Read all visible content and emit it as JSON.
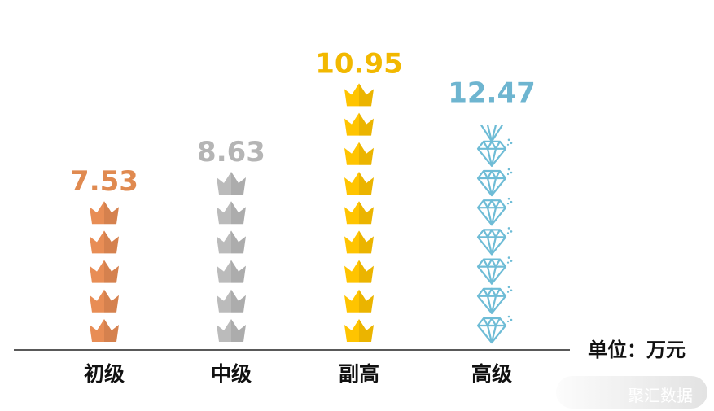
{
  "chart_data": {
    "type": "bar",
    "title": "",
    "xlabel": "",
    "ylabel": "",
    "categories": [
      "初级",
      "中级",
      "副高",
      "高级"
    ],
    "values": [
      7.53,
      8.63,
      10.95,
      12.47
    ],
    "value_labels": [
      "7.53",
      "8.63",
      "10.95",
      "12.47"
    ],
    "icons": [
      "crown-icon",
      "crown-icon",
      "crown-icon",
      "diamond-icon"
    ],
    "icon_counts": [
      5,
      6,
      9,
      7.5
    ],
    "colors": [
      "#E88D55",
      "#BBBBBB",
      "#FFC400",
      "#6EBCD6"
    ],
    "label_colors": [
      "#E08A50",
      "#B5B5B5",
      "#F2B800",
      "#6EB5D0"
    ],
    "unit": "单位：万元",
    "grid": false
  },
  "watermark": {
    "text": "聚汇数据"
  }
}
